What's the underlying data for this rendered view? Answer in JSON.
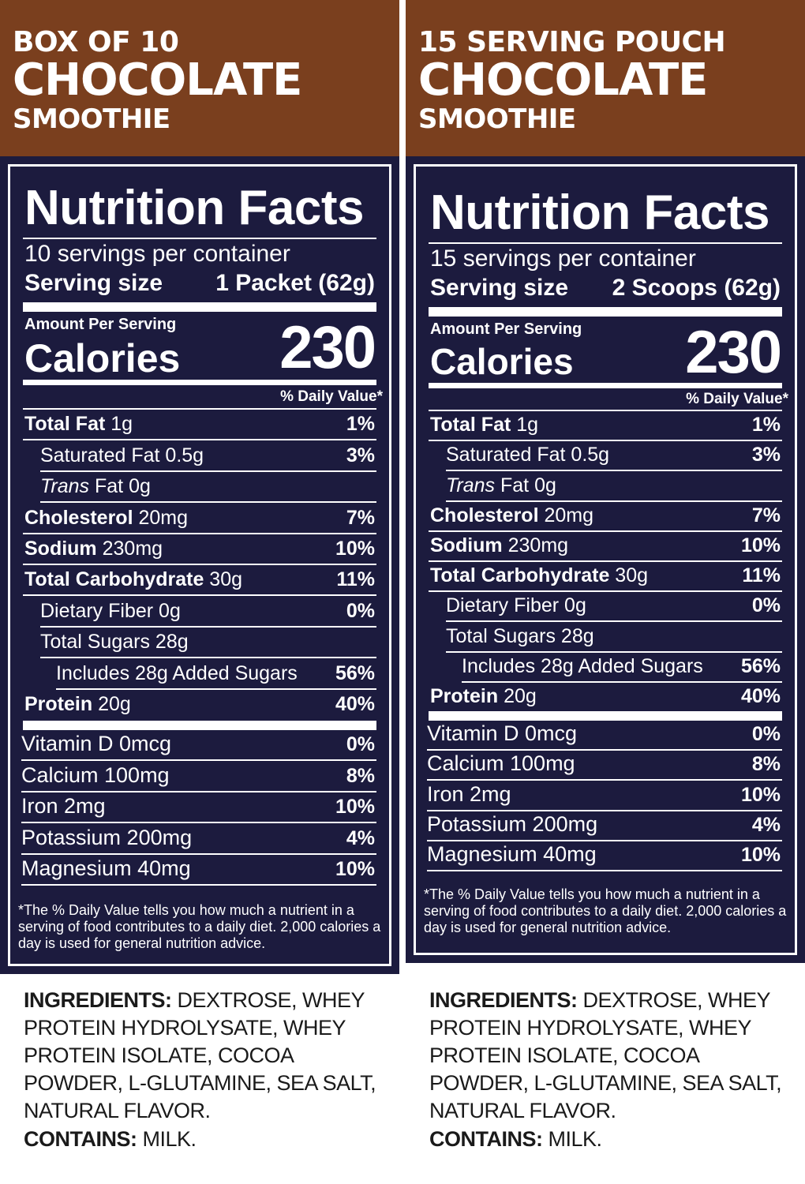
{
  "colors": {
    "header_brown": "#7a3f1e",
    "panel_navy": "#1c1b3e",
    "text_white": "#ffffff"
  },
  "panels": [
    {
      "header": {
        "line1": "BOX OF 10",
        "line2": "CHOCOLATE",
        "line3": "SMOOTHIE"
      },
      "title": "Nutrition Facts",
      "servings": "10 servings per container",
      "serving_size_label": "Serving size",
      "serving_size_value": "1 Packet (62g)",
      "amount_per_serving": "Amount Per Serving",
      "calories_label": "Calories",
      "calories_value": "230",
      "dv_header": "% Daily Value*",
      "nutrients": [
        {
          "bold": "Total Fat",
          "rest": " 1g",
          "pct": "1%"
        },
        {
          "bold": "",
          "rest": "Saturated Fat 0.5g",
          "pct": "3%"
        },
        {
          "italic": "Trans",
          "rest": " Fat 0g",
          "pct": ""
        },
        {
          "bold": "Cholesterol",
          "rest": " 20mg",
          "pct": "7%"
        },
        {
          "bold": "Sodium",
          "rest": " 230mg",
          "pct": "10%"
        },
        {
          "bold": "Total Carbohydrate",
          "rest": " 30g",
          "pct": "11%"
        },
        {
          "bold": "",
          "rest": "Dietary Fiber 0g",
          "pct": "0%"
        },
        {
          "bold": "",
          "rest": "Total Sugars 28g",
          "pct": ""
        },
        {
          "bold": "",
          "rest": "Includes 28g Added Sugars",
          "pct": "56%"
        },
        {
          "bold": "Protein",
          "rest": " 20g",
          "pct": "40%"
        }
      ],
      "vitamins": [
        {
          "name": "Vitamin D 0mcg",
          "pct": "0%"
        },
        {
          "name": "Calcium 100mg",
          "pct": "8%"
        },
        {
          "name": "Iron 2mg",
          "pct": "10%"
        },
        {
          "name": "Potassium 200mg",
          "pct": "4%"
        },
        {
          "name": "Magnesium 40mg",
          "pct": "10%"
        }
      ],
      "footnote": "*The % Daily Value tells you how much a nutrient in a serving of food contributes to a daily diet. 2,000 calories a day is used for general nutrition advice.",
      "ingredients_label": "INGREDIENTS:",
      "ingredients": " DEXTROSE, WHEY PROTEIN HYDROLYSATE, WHEY PROTEIN ISOLATE, COCOA POWDER, L-GLUTAMINE, SEA SALT, NATURAL FLAVOR.",
      "contains_label": "CONTAINS:",
      "contains": " MILK."
    },
    {
      "header": {
        "line1": "15 SERVING POUCH",
        "line2": "CHOCOLATE",
        "line3": "SMOOTHIE"
      },
      "title": "Nutrition Facts",
      "servings": "15 servings per container",
      "serving_size_label": "Serving size",
      "serving_size_value": "2 Scoops (62g)",
      "amount_per_serving": "Amount Per Serving",
      "calories_label": "Calories",
      "calories_value": "230",
      "dv_header": "% Daily Value*",
      "nutrients": [
        {
          "bold": "Total Fat",
          "rest": " 1g",
          "pct": "1%"
        },
        {
          "bold": "",
          "rest": "Saturated Fat 0.5g",
          "pct": "3%"
        },
        {
          "italic": "Trans",
          "rest": " Fat 0g",
          "pct": ""
        },
        {
          "bold": "Cholesterol",
          "rest": " 20mg",
          "pct": "7%"
        },
        {
          "bold": "Sodium",
          "rest": " 230mg",
          "pct": "10%"
        },
        {
          "bold": "Total Carbohydrate",
          "rest": " 30g",
          "pct": "11%"
        },
        {
          "bold": "",
          "rest": "Dietary Fiber 0g",
          "pct": "0%"
        },
        {
          "bold": "",
          "rest": "Total Sugars 28g",
          "pct": ""
        },
        {
          "bold": "",
          "rest": "Includes 28g Added Sugars",
          "pct": "56%"
        },
        {
          "bold": "Protein",
          "rest": " 20g",
          "pct": "40%"
        }
      ],
      "vitamins": [
        {
          "name": "Vitamin D 0mcg",
          "pct": "0%"
        },
        {
          "name": "Calcium 100mg",
          "pct": "8%"
        },
        {
          "name": "Iron 2mg",
          "pct": "10%"
        },
        {
          "name": "Potassium 200mg",
          "pct": "4%"
        },
        {
          "name": "Magnesium 40mg",
          "pct": "10%"
        }
      ],
      "footnote": "*The % Daily Value tells you how much a nutrient in a serving of food contributes to a daily diet. 2,000 calories a day is used for general nutrition advice.",
      "ingredients_label": "INGREDIENTS:",
      "ingredients": " DEXTROSE, WHEY PROTEIN HYDROLYSATE, WHEY PROTEIN ISOLATE, COCOA POWDER, L-GLUTAMINE, SEA SALT, NATURAL FLAVOR.",
      "contains_label": "CONTAINS:",
      "contains": " MILK."
    }
  ]
}
